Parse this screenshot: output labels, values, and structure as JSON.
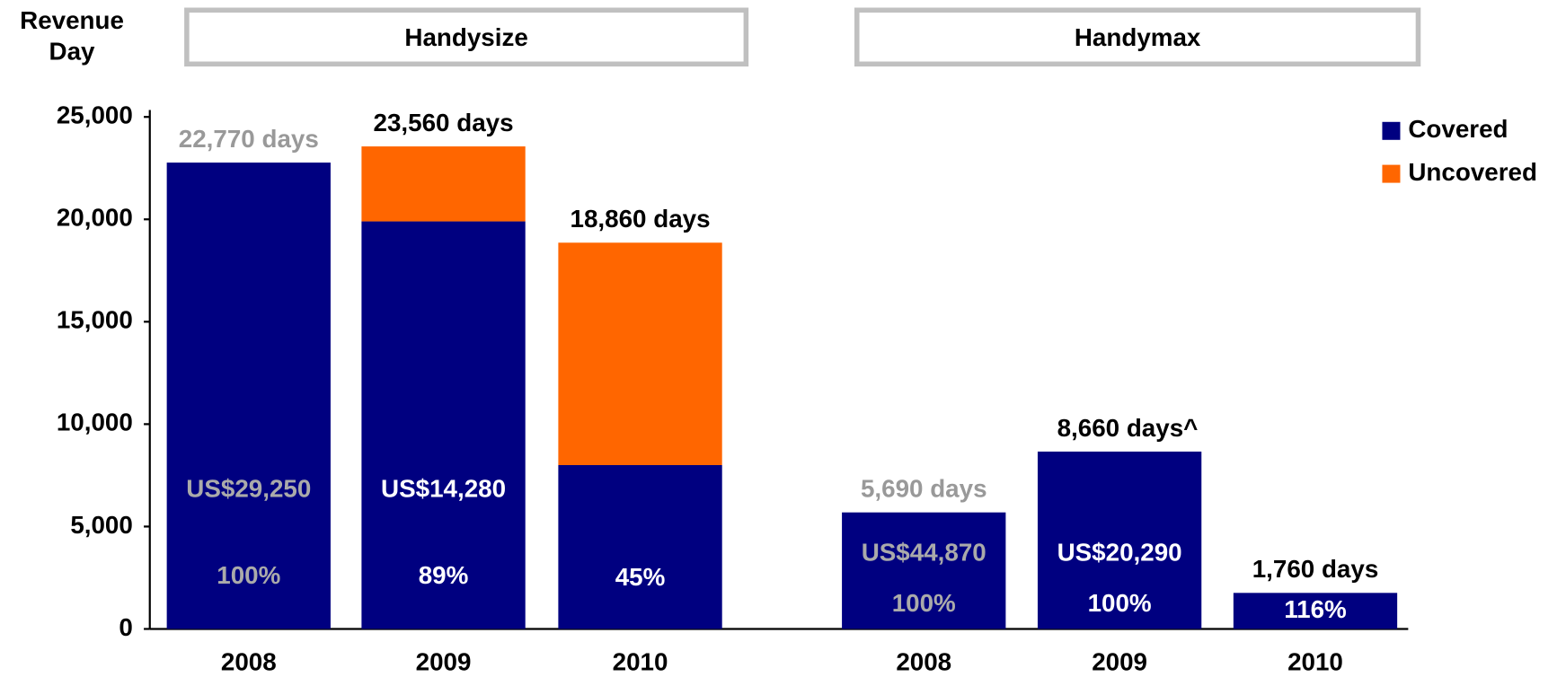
{
  "chart_data": {
    "type": "stacked_bar",
    "ylabel": [
      "Revenue",
      "Day"
    ],
    "groups": [
      "Handysize",
      "Handymax"
    ],
    "categories": [
      "2008",
      "2009",
      "2010",
      "2008",
      "2009",
      "2010"
    ],
    "series": [
      {
        "name": "Covered",
        "color": "#000080",
        "values": [
          22770,
          19900,
          8000,
          5690,
          8660,
          1760
        ]
      },
      {
        "name": "Uncovered",
        "color": "#ff6600",
        "values": [
          0,
          3660,
          10860,
          0,
          0,
          0
        ]
      }
    ],
    "totals": [
      22770,
      23560,
      18860,
      5690,
      8660,
      1760
    ],
    "total_labels": [
      "22,770 days",
      "23,560 days",
      "18,860 days",
      "5,690 days",
      "8,660 days^",
      "1,760 days"
    ],
    "total_label_colors": [
      "#999999",
      "#000000",
      "#000000",
      "#999999",
      "#000000",
      "#000000"
    ],
    "rate_labels": [
      "US$29,250",
      "US$14,280",
      null,
      "US$44,870",
      "US$20,290",
      null
    ],
    "coverage_labels": [
      "100%",
      "89%",
      "45%",
      "100%",
      "100%",
      "116%"
    ],
    "inner_label_colors": [
      "#aaaaaa",
      "#ffffff",
      "#ffffff",
      "#aaaaaa",
      "#ffffff",
      "#ffffff"
    ],
    "ylim": [
      0,
      25000
    ],
    "yticks": [
      0,
      {
        "value": 5000,
        "label": "5,000"
      },
      {
        "value": 10000,
        "label": "10,000"
      },
      {
        "value": 15000,
        "label": "15,000"
      },
      {
        "value": 20000,
        "label": "20,000"
      },
      {
        "value": 25000,
        "label": "25,000"
      }
    ],
    "legend": "top-right"
  }
}
